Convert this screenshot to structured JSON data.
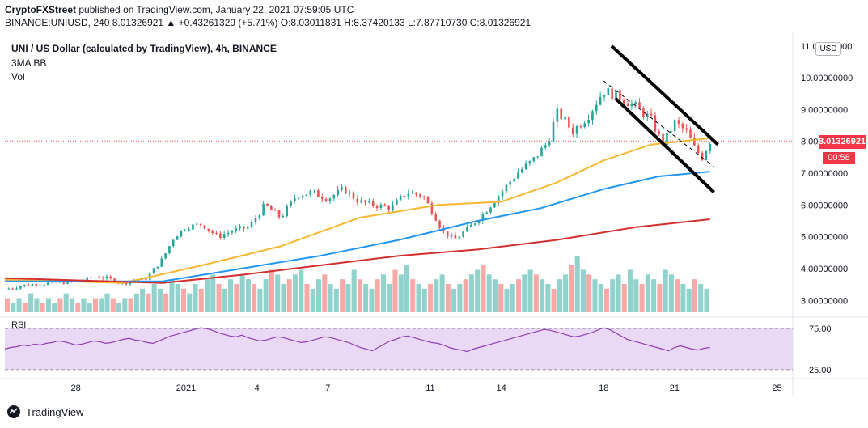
{
  "header": {
    "author": "CryptoFXStreet",
    "published": "published on TradingView.com, January 22, 2021 07:59:05 UTC",
    "ohlc": "BINANCE:UNIUSD, 240 8.01326921 ▲ +0.43261329 (+5.71%) O:8.03011831 H:8.37420133 L:7.87710730 C:8.01326921"
  },
  "legend": {
    "symbol": "UNI / US Dollar (calculated by TradingView), 4h, BINANCE",
    "indicator": "3MA BB",
    "volume": "Vol"
  },
  "rsi_label": "RSI",
  "currency_button": "USD",
  "last_price": "8.01326921",
  "countdown": "00:58",
  "branding": "TradingView",
  "colors": {
    "up": "#26a69a",
    "down": "#ef5350",
    "ma_short": "#f7b731",
    "ma_mid": "#2196f3",
    "ma_long": "#d32f2f",
    "rsi_line": "#8e3fb0",
    "rsi_band": "#ead9f6",
    "channel": "#000000"
  },
  "chart_data": {
    "type": "candlestick",
    "price_axis": {
      "ticks": [
        "11.00000000",
        "10.00000000",
        "9.00000000",
        "8.00000000",
        "7.00000000",
        "6.00000000",
        "5.00000000",
        "4.00000000",
        "3.00000000"
      ],
      "range": [
        2.6,
        11.3
      ]
    },
    "x_axis": {
      "labels": [
        "28",
        "2021",
        "4",
        "7",
        "11",
        "14",
        "18",
        "21",
        "25"
      ],
      "positions": [
        0.09,
        0.23,
        0.32,
        0.41,
        0.54,
        0.63,
        0.76,
        0.85,
        0.98
      ]
    },
    "rsi_axis": {
      "ticks": [
        "75.00",
        "25.00"
      ],
      "range": [
        20,
        85
      ]
    },
    "price_path": [
      [
        0.0,
        3.35
      ],
      [
        0.03,
        3.5
      ],
      [
        0.06,
        3.55
      ],
      [
        0.09,
        3.6
      ],
      [
        0.12,
        3.75
      ],
      [
        0.15,
        3.55
      ],
      [
        0.18,
        3.7
      ],
      [
        0.2,
        4.3
      ],
      [
        0.215,
        5.0
      ],
      [
        0.23,
        5.3
      ],
      [
        0.25,
        5.4
      ],
      [
        0.27,
        5.0
      ],
      [
        0.29,
        5.2
      ],
      [
        0.31,
        5.3
      ],
      [
        0.33,
        6.0
      ],
      [
        0.35,
        5.6
      ],
      [
        0.37,
        6.3
      ],
      [
        0.39,
        6.4
      ],
      [
        0.41,
        6.2
      ],
      [
        0.43,
        6.5
      ],
      [
        0.45,
        6.1
      ],
      [
        0.47,
        6.0
      ],
      [
        0.49,
        5.9
      ],
      [
        0.51,
        6.4
      ],
      [
        0.53,
        6.3
      ],
      [
        0.545,
        5.7
      ],
      [
        0.555,
        5.2
      ],
      [
        0.57,
        4.9
      ],
      [
        0.59,
        5.3
      ],
      [
        0.61,
        5.8
      ],
      [
        0.63,
        6.4
      ],
      [
        0.65,
        7.0
      ],
      [
        0.67,
        7.4
      ],
      [
        0.69,
        8.0
      ],
      [
        0.7,
        8.9
      ],
      [
        0.71,
        8.7
      ],
      [
        0.72,
        8.3
      ],
      [
        0.74,
        8.8
      ],
      [
        0.76,
        9.6
      ],
      [
        0.78,
        9.4
      ],
      [
        0.8,
        9.1
      ],
      [
        0.82,
        8.7
      ],
      [
        0.835,
        7.9
      ],
      [
        0.85,
        8.6
      ],
      [
        0.865,
        8.3
      ],
      [
        0.875,
        7.8
      ],
      [
        0.885,
        7.5
      ],
      [
        0.895,
        8.01
      ]
    ],
    "series": [
      {
        "name": "MA short",
        "points": [
          [
            0.0,
            3.65
          ],
          [
            0.15,
            3.55
          ],
          [
            0.25,
            4.1
          ],
          [
            0.35,
            4.7
          ],
          [
            0.45,
            5.6
          ],
          [
            0.55,
            6.0
          ],
          [
            0.63,
            6.1
          ],
          [
            0.7,
            6.7
          ],
          [
            0.76,
            7.4
          ],
          [
            0.82,
            7.9
          ],
          [
            0.895,
            8.1
          ]
        ]
      },
      {
        "name": "MA mid",
        "points": [
          [
            0.0,
            3.6
          ],
          [
            0.2,
            3.6
          ],
          [
            0.3,
            4.0
          ],
          [
            0.4,
            4.4
          ],
          [
            0.5,
            4.9
          ],
          [
            0.6,
            5.5
          ],
          [
            0.68,
            5.9
          ],
          [
            0.76,
            6.5
          ],
          [
            0.83,
            6.9
          ],
          [
            0.895,
            7.05
          ]
        ]
      },
      {
        "name": "MA long",
        "points": [
          [
            0.0,
            3.7
          ],
          [
            0.2,
            3.55
          ],
          [
            0.3,
            3.8
          ],
          [
            0.4,
            4.1
          ],
          [
            0.5,
            4.4
          ],
          [
            0.6,
            4.6
          ],
          [
            0.7,
            4.9
          ],
          [
            0.8,
            5.3
          ],
          [
            0.895,
            5.55
          ]
        ]
      }
    ],
    "channel": {
      "upper": [
        [
          0.77,
          11.0
        ],
        [
          0.905,
          7.9
        ]
      ],
      "lower": [
        [
          0.775,
          9.35
        ],
        [
          0.9,
          6.4
        ]
      ],
      "mid_dashed": [
        [
          0.76,
          9.9
        ],
        [
          0.9,
          7.2
        ]
      ]
    },
    "volume": [
      3,
      2,
      3,
      2,
      4,
      3,
      2,
      3,
      2,
      3,
      4,
      3,
      2,
      3,
      2,
      3,
      3,
      4,
      3,
      2,
      3,
      3,
      4,
      5,
      4,
      6,
      5,
      4,
      7,
      6,
      5,
      4,
      6,
      5,
      7,
      8,
      6,
      5,
      7,
      6,
      8,
      7,
      6,
      5,
      7,
      9,
      8,
      6,
      7,
      8,
      9,
      6,
      5,
      7,
      8,
      6,
      5,
      7,
      6,
      9,
      7,
      6,
      5,
      7,
      8,
      6,
      9,
      8,
      10,
      7,
      6,
      5,
      6,
      7,
      8,
      6,
      5,
      6,
      7,
      8,
      9,
      10,
      8,
      7,
      6,
      5,
      6,
      7,
      8,
      9,
      8,
      7,
      6,
      5,
      7,
      8,
      10,
      12,
      9,
      8,
      7,
      6,
      5,
      7,
      8,
      6,
      9,
      7,
      6,
      8,
      7,
      6,
      9,
      8,
      7,
      6,
      5,
      7,
      6,
      5
    ],
    "rsi": [
      50,
      52,
      53,
      55,
      54,
      56,
      55,
      57,
      58,
      60,
      59,
      57,
      55,
      56,
      58,
      60,
      59,
      57,
      58,
      60,
      62,
      63,
      61,
      60,
      58,
      57,
      60,
      63,
      66,
      68,
      70,
      72,
      74,
      76,
      75,
      73,
      70,
      68,
      66,
      65,
      67,
      64,
      62,
      60,
      61,
      63,
      65,
      64,
      62,
      60,
      58,
      59,
      61,
      63,
      65,
      64,
      62,
      60,
      58,
      55,
      52,
      50,
      48,
      52,
      56,
      60,
      62,
      65,
      66,
      64,
      62,
      60,
      58,
      57,
      55,
      52,
      50,
      49,
      47,
      50,
      52,
      54,
      56,
      58,
      60,
      62,
      64,
      66,
      68,
      70,
      72,
      74,
      73,
      71,
      69,
      67,
      65,
      66,
      68,
      70,
      73,
      76,
      74,
      70,
      66,
      62,
      60,
      58,
      56,
      54,
      52,
      50,
      48,
      52,
      54,
      52,
      50,
      49,
      51,
      52
    ]
  }
}
